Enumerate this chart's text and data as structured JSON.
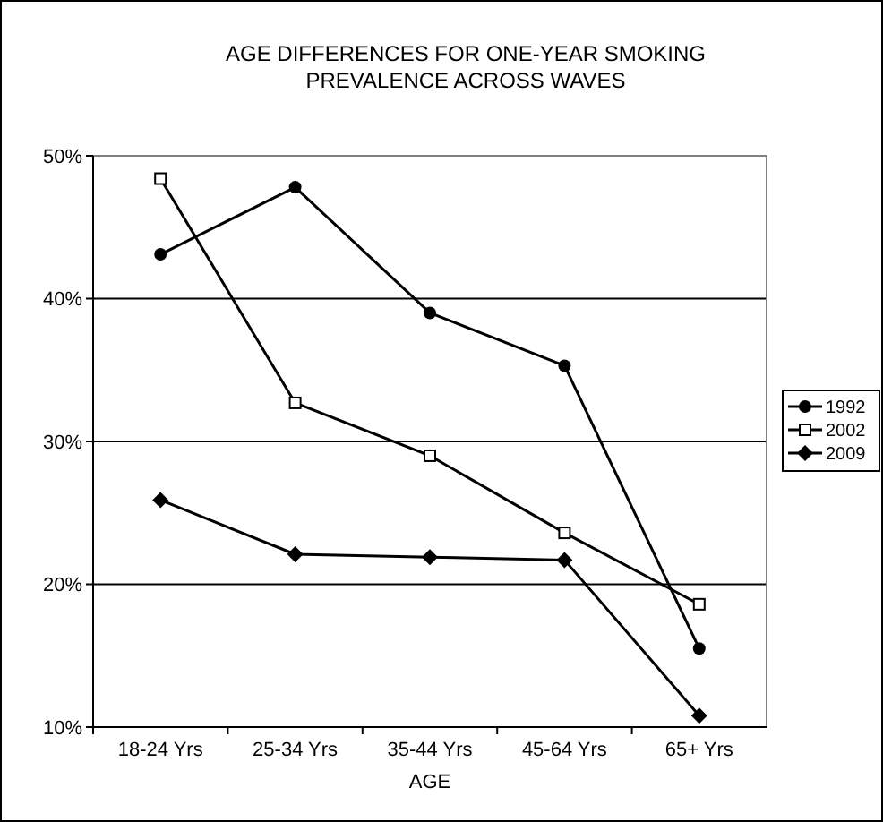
{
  "chart_data": {
    "type": "line",
    "title": "AGE DIFFERENCES FOR ONE-YEAR SMOKING PREVALENCE ACROSS WAVES",
    "xlabel": "AGE",
    "categories": [
      "18-24 Yrs",
      "25-34 Yrs",
      "35-44 Yrs",
      "45-64 Yrs",
      "65+ Yrs"
    ],
    "series": [
      {
        "name": "1992",
        "color": "#000000",
        "marker": "circle",
        "values": [
          43.1,
          47.8,
          39.0,
          35.3,
          15.5
        ]
      },
      {
        "name": "2002",
        "color": "#000000",
        "marker": "square",
        "values": [
          48.4,
          32.7,
          29.0,
          23.6,
          18.6
        ]
      },
      {
        "name": "2009",
        "color": "#000000",
        "marker": "diamond",
        "values": [
          25.9,
          22.1,
          21.9,
          21.7,
          10.8
        ]
      }
    ],
    "ylim": [
      10,
      50
    ],
    "yticks": [
      {
        "value": 10,
        "label": "10%"
      },
      {
        "value": 20,
        "label": "20%"
      },
      {
        "value": 30,
        "label": "30%"
      },
      {
        "value": 40,
        "label": "40%"
      },
      {
        "value": 50,
        "label": "50%"
      }
    ],
    "grid": "y",
    "legend": "right"
  }
}
